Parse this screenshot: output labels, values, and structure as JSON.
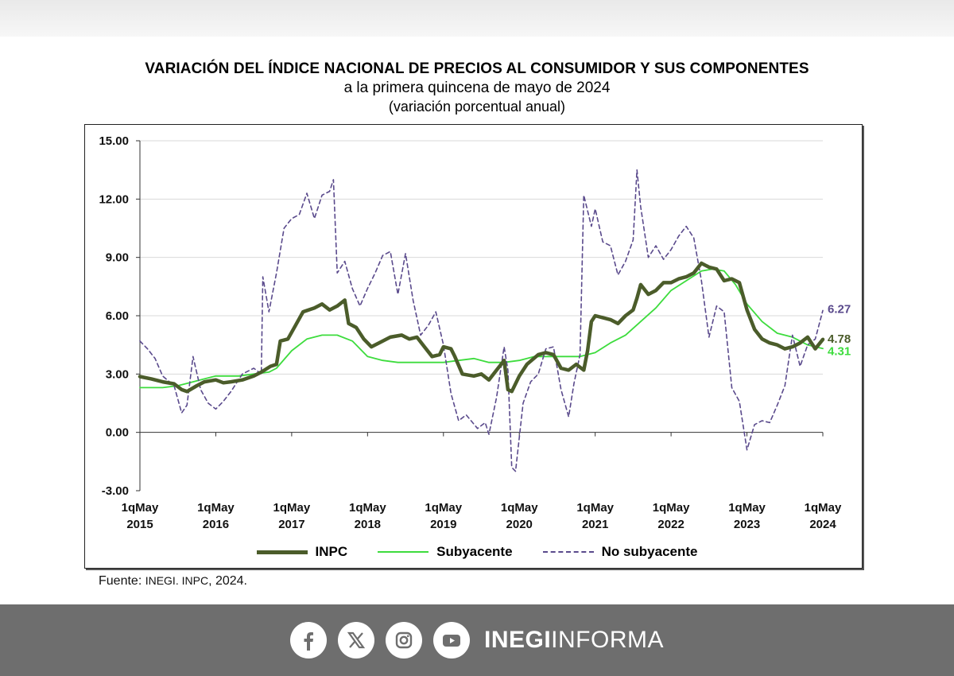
{
  "header": {
    "title": "VARIACIÓN DEL ÍNDICE NACIONAL DE PRECIOS AL CONSUMIDOR Y SUS COMPONENTES",
    "subtitle": "a la primera quincena de mayo de 2024",
    "unit": "(variación porcentual anual)"
  },
  "chart_data": {
    "type": "line",
    "ylim": [
      -3,
      15
    ],
    "yticks": [
      "15.00",
      "12.00",
      "9.00",
      "6.00",
      "3.00",
      "0.00",
      "-3.00"
    ],
    "xlim": [
      2015.0,
      2024.0
    ],
    "xticks": [
      {
        "line1": "1qMay",
        "line2": "2015"
      },
      {
        "line1": "1qMay",
        "line2": "2016"
      },
      {
        "line1": "1qMay",
        "line2": "2017"
      },
      {
        "line1": "1qMay",
        "line2": "2018"
      },
      {
        "line1": "1qMay",
        "line2": "2019"
      },
      {
        "line1": "1qMay",
        "line2": "2020"
      },
      {
        "line1": "1qMay",
        "line2": "2021"
      },
      {
        "line1": "1qMay",
        "line2": "2022"
      },
      {
        "line1": "1qMay",
        "line2": "2023"
      },
      {
        "line1": "1qMay",
        "line2": "2024"
      }
    ],
    "grid": true,
    "legend_position": "bottom",
    "series": [
      {
        "name": "INPC",
        "color": "#4b5c2a",
        "end_label": "4.78",
        "points": [
          [
            2015.0,
            2.87
          ],
          [
            2015.15,
            2.75
          ],
          [
            2015.3,
            2.6
          ],
          [
            2015.45,
            2.5
          ],
          [
            2015.55,
            2.2
          ],
          [
            2015.62,
            2.1
          ],
          [
            2015.75,
            2.4
          ],
          [
            2015.85,
            2.6
          ],
          [
            2016.0,
            2.7
          ],
          [
            2016.1,
            2.55
          ],
          [
            2016.2,
            2.6
          ],
          [
            2016.35,
            2.7
          ],
          [
            2016.5,
            2.9
          ],
          [
            2016.6,
            3.1
          ],
          [
            2016.72,
            3.4
          ],
          [
            2016.8,
            3.5
          ],
          [
            2016.85,
            4.7
          ],
          [
            2016.95,
            4.8
          ],
          [
            2017.05,
            5.5
          ],
          [
            2017.15,
            6.2
          ],
          [
            2017.3,
            6.4
          ],
          [
            2017.4,
            6.6
          ],
          [
            2017.5,
            6.3
          ],
          [
            2017.6,
            6.5
          ],
          [
            2017.7,
            6.8
          ],
          [
            2017.75,
            5.6
          ],
          [
            2017.85,
            5.4
          ],
          [
            2017.95,
            4.8
          ],
          [
            2018.05,
            4.4
          ],
          [
            2018.15,
            4.6
          ],
          [
            2018.3,
            4.9
          ],
          [
            2018.45,
            5.0
          ],
          [
            2018.55,
            4.8
          ],
          [
            2018.65,
            4.9
          ],
          [
            2018.75,
            4.4
          ],
          [
            2018.85,
            3.9
          ],
          [
            2018.95,
            4.0
          ],
          [
            2019.0,
            4.4
          ],
          [
            2019.1,
            4.3
          ],
          [
            2019.15,
            3.9
          ],
          [
            2019.25,
            3.0
          ],
          [
            2019.4,
            2.9
          ],
          [
            2019.5,
            3.0
          ],
          [
            2019.6,
            2.7
          ],
          [
            2019.7,
            3.2
          ],
          [
            2019.8,
            3.7
          ],
          [
            2019.85,
            2.2
          ],
          [
            2019.9,
            2.1
          ],
          [
            2020.0,
            2.9
          ],
          [
            2020.1,
            3.5
          ],
          [
            2020.25,
            4.0
          ],
          [
            2020.35,
            4.1
          ],
          [
            2020.45,
            4.0
          ],
          [
            2020.55,
            3.3
          ],
          [
            2020.65,
            3.2
          ],
          [
            2020.75,
            3.5
          ],
          [
            2020.85,
            3.2
          ],
          [
            2020.9,
            4.2
          ],
          [
            2020.95,
            5.7
          ],
          [
            2021.0,
            6.0
          ],
          [
            2021.1,
            5.9
          ],
          [
            2021.2,
            5.8
          ],
          [
            2021.3,
            5.6
          ],
          [
            2021.4,
            6.0
          ],
          [
            2021.5,
            6.3
          ],
          [
            2021.55,
            6.9
          ],
          [
            2021.6,
            7.6
          ],
          [
            2021.7,
            7.1
          ],
          [
            2021.8,
            7.3
          ],
          [
            2021.9,
            7.7
          ],
          [
            2022.0,
            7.7
          ],
          [
            2022.1,
            7.9
          ],
          [
            2022.2,
            8.0
          ],
          [
            2022.3,
            8.2
          ],
          [
            2022.4,
            8.7
          ],
          [
            2022.5,
            8.5
          ],
          [
            2022.6,
            8.4
          ],
          [
            2022.7,
            7.8
          ],
          [
            2022.8,
            7.9
          ],
          [
            2022.9,
            7.7
          ],
          [
            2023.0,
            6.3
          ],
          [
            2023.1,
            5.3
          ],
          [
            2023.2,
            4.8
          ],
          [
            2023.3,
            4.6
          ],
          [
            2023.4,
            4.5
          ],
          [
            2023.5,
            4.3
          ],
          [
            2023.6,
            4.4
          ],
          [
            2023.7,
            4.6
          ],
          [
            2023.8,
            4.9
          ],
          [
            2023.9,
            4.3
          ],
          [
            2024.0,
            4.78
          ]
        ]
      },
      {
        "name": "Subyacente",
        "color": "#3ddc3d",
        "end_label": "4.31",
        "points": [
          [
            2015.0,
            2.3
          ],
          [
            2015.3,
            2.3
          ],
          [
            2015.5,
            2.4
          ],
          [
            2015.7,
            2.6
          ],
          [
            2016.0,
            2.9
          ],
          [
            2016.3,
            2.9
          ],
          [
            2016.5,
            3.0
          ],
          [
            2016.7,
            3.1
          ],
          [
            2016.8,
            3.3
          ],
          [
            2017.0,
            4.2
          ],
          [
            2017.2,
            4.8
          ],
          [
            2017.4,
            5.0
          ],
          [
            2017.6,
            5.0
          ],
          [
            2017.8,
            4.7
          ],
          [
            2018.0,
            3.9
          ],
          [
            2018.2,
            3.7
          ],
          [
            2018.4,
            3.6
          ],
          [
            2018.6,
            3.6
          ],
          [
            2018.8,
            3.6
          ],
          [
            2019.0,
            3.6
          ],
          [
            2019.2,
            3.7
          ],
          [
            2019.4,
            3.8
          ],
          [
            2019.6,
            3.6
          ],
          [
            2019.8,
            3.6
          ],
          [
            2020.0,
            3.7
          ],
          [
            2020.2,
            3.9
          ],
          [
            2020.4,
            3.9
          ],
          [
            2020.6,
            3.9
          ],
          [
            2020.8,
            3.9
          ],
          [
            2021.0,
            4.1
          ],
          [
            2021.2,
            4.6
          ],
          [
            2021.4,
            5.0
          ],
          [
            2021.6,
            5.7
          ],
          [
            2021.8,
            6.4
          ],
          [
            2022.0,
            7.3
          ],
          [
            2022.2,
            7.8
          ],
          [
            2022.4,
            8.3
          ],
          [
            2022.55,
            8.4
          ],
          [
            2022.7,
            8.3
          ],
          [
            2022.85,
            7.6
          ],
          [
            2023.0,
            6.6
          ],
          [
            2023.2,
            5.7
          ],
          [
            2023.4,
            5.1
          ],
          [
            2023.6,
            4.9
          ],
          [
            2023.8,
            4.5
          ],
          [
            2024.0,
            4.31
          ]
        ]
      },
      {
        "name": "No subyacente",
        "color": "#5a4a8c",
        "end_label": "6.27",
        "points": [
          [
            2015.0,
            4.7
          ],
          [
            2015.1,
            4.3
          ],
          [
            2015.2,
            3.8
          ],
          [
            2015.3,
            2.9
          ],
          [
            2015.45,
            2.4
          ],
          [
            2015.55,
            1.0
          ],
          [
            2015.62,
            1.4
          ],
          [
            2015.7,
            3.9
          ],
          [
            2015.8,
            2.2
          ],
          [
            2015.9,
            1.5
          ],
          [
            2016.0,
            1.2
          ],
          [
            2016.1,
            1.6
          ],
          [
            2016.2,
            2.1
          ],
          [
            2016.35,
            3.0
          ],
          [
            2016.5,
            3.3
          ],
          [
            2016.6,
            3.0
          ],
          [
            2016.62,
            8.0
          ],
          [
            2016.7,
            6.2
          ],
          [
            2016.8,
            8.2
          ],
          [
            2016.9,
            10.5
          ],
          [
            2017.0,
            11.0
          ],
          [
            2017.1,
            11.2
          ],
          [
            2017.2,
            12.3
          ],
          [
            2017.3,
            11.0
          ],
          [
            2017.4,
            12.2
          ],
          [
            2017.5,
            12.4
          ],
          [
            2017.55,
            13.0
          ],
          [
            2017.6,
            8.2
          ],
          [
            2017.7,
            8.8
          ],
          [
            2017.8,
            7.4
          ],
          [
            2017.9,
            6.5
          ],
          [
            2018.0,
            7.4
          ],
          [
            2018.1,
            8.2
          ],
          [
            2018.2,
            9.1
          ],
          [
            2018.3,
            9.3
          ],
          [
            2018.4,
            7.1
          ],
          [
            2018.5,
            9.2
          ],
          [
            2018.6,
            6.8
          ],
          [
            2018.7,
            5.0
          ],
          [
            2018.8,
            5.5
          ],
          [
            2018.9,
            6.2
          ],
          [
            2019.0,
            4.5
          ],
          [
            2019.1,
            2.0
          ],
          [
            2019.2,
            0.6
          ],
          [
            2019.3,
            0.9
          ],
          [
            2019.45,
            0.2
          ],
          [
            2019.55,
            0.5
          ],
          [
            2019.6,
            -0.1
          ],
          [
            2019.7,
            1.8
          ],
          [
            2019.8,
            4.4
          ],
          [
            2019.85,
            3.2
          ],
          [
            2019.9,
            -1.8
          ],
          [
            2019.95,
            -2.0
          ],
          [
            2020.05,
            1.5
          ],
          [
            2020.15,
            2.6
          ],
          [
            2020.25,
            3.0
          ],
          [
            2020.35,
            4.3
          ],
          [
            2020.45,
            4.4
          ],
          [
            2020.55,
            2.2
          ],
          [
            2020.65,
            0.8
          ],
          [
            2020.72,
            2.5
          ],
          [
            2020.8,
            4.0
          ],
          [
            2020.85,
            12.2
          ],
          [
            2020.95,
            10.6
          ],
          [
            2021.0,
            11.5
          ],
          [
            2021.1,
            9.8
          ],
          [
            2021.2,
            9.6
          ],
          [
            2021.3,
            8.1
          ],
          [
            2021.4,
            8.8
          ],
          [
            2021.5,
            9.9
          ],
          [
            2021.55,
            13.5
          ],
          [
            2021.6,
            11.6
          ],
          [
            2021.7,
            9.0
          ],
          [
            2021.8,
            9.6
          ],
          [
            2021.9,
            8.9
          ],
          [
            2022.0,
            9.4
          ],
          [
            2022.1,
            10.1
          ],
          [
            2022.2,
            10.6
          ],
          [
            2022.3,
            10.0
          ],
          [
            2022.4,
            7.8
          ],
          [
            2022.5,
            4.9
          ],
          [
            2022.6,
            6.5
          ],
          [
            2022.7,
            6.2
          ],
          [
            2022.8,
            2.3
          ],
          [
            2022.9,
            1.6
          ],
          [
            2023.0,
            -0.9
          ],
          [
            2023.1,
            0.4
          ],
          [
            2023.2,
            0.6
          ],
          [
            2023.3,
            0.5
          ],
          [
            2023.4,
            1.4
          ],
          [
            2023.5,
            2.4
          ],
          [
            2023.6,
            5.0
          ],
          [
            2023.7,
            3.4
          ],
          [
            2023.8,
            4.5
          ],
          [
            2023.9,
            4.8
          ],
          [
            2024.0,
            6.27
          ]
        ]
      }
    ]
  },
  "legend": [
    {
      "label": "INPC"
    },
    {
      "label": "Subyacente"
    },
    {
      "label": "No subyacente"
    }
  ],
  "source": {
    "prefix": "Fuente: ",
    "org": "INEGI. INPC",
    "suffix": ", 2024."
  },
  "footer": {
    "brand_bold": "INEGI",
    "brand_light": "INFORMA"
  },
  "icons": [
    "facebook-icon",
    "x-icon",
    "instagram-icon",
    "youtube-icon"
  ],
  "colors": {
    "inpc": "#4b5c2a",
    "subyacente": "#3ddc3d",
    "no_subyacente": "#5a4a8c",
    "footer": "#6e6e6e"
  }
}
